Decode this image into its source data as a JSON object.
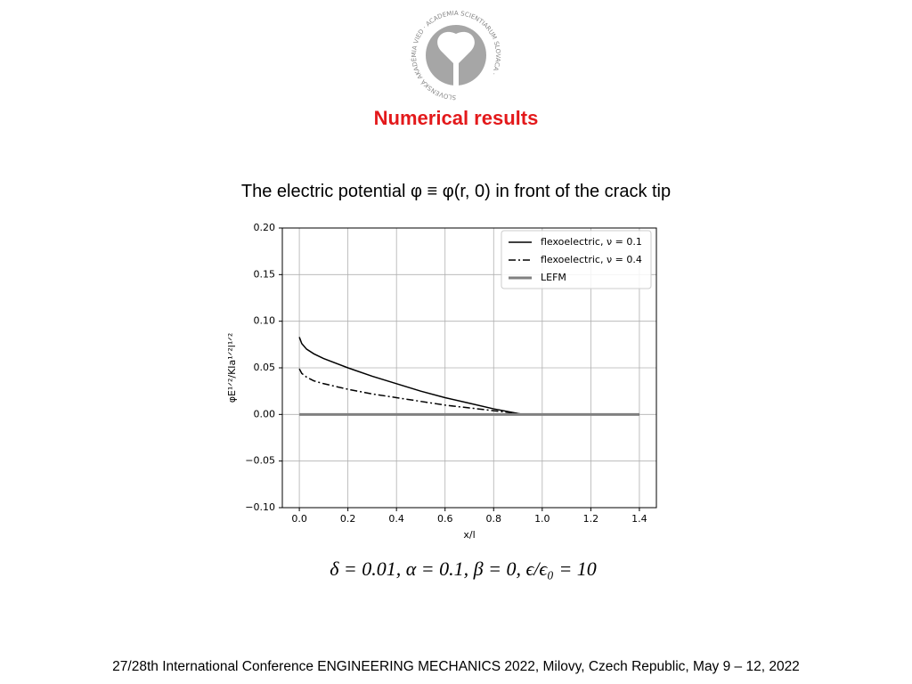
{
  "slide": {
    "logo_text": "SLOVENSKÁ AKADÉMIA VIED · ACADEMIA SCIENTIARUM SLOVACA ·",
    "title": "Numerical results",
    "subtitle": "The electric potential φ ≡ φ(r, 0) in front of the crack tip",
    "parameters": "δ = 0.01, α = 0.1, β = 0, ϵ/ϵ₀ = 10",
    "footer": "27/28th International Conference ENGINEERING MECHANICS 2022, Milovy, Czech Republic, May 9 – 12, 2022"
  },
  "chart_data": {
    "type": "line",
    "x_label": "x/l",
    "y_label": "φE¹ᐟ²/KIa¹ᐟ²l¹ᐟ²",
    "x": [
      0,
      0.01,
      0.03,
      0.06,
      0.1,
      0.2,
      0.3,
      0.4,
      0.5,
      0.6,
      0.7,
      0.8,
      0.9,
      0.92,
      1.0,
      1.2,
      1.4
    ],
    "series": [
      {
        "name": "flexoelectric, ν = 0.1",
        "color": "#000000",
        "linestyle": "solid",
        "values": [
          0.083,
          0.076,
          0.07,
          0.065,
          0.06,
          0.05,
          0.041,
          0.033,
          0.025,
          0.018,
          0.012,
          0.006,
          0.001,
          0,
          0,
          0,
          0
        ]
      },
      {
        "name": "flexoelectric, ν = 0.4",
        "color": "#000000",
        "linestyle": "dashdot",
        "values": [
          0.049,
          0.044,
          0.04,
          0.036,
          0.033,
          0.027,
          0.022,
          0.018,
          0.014,
          0.01,
          0.007,
          0.004,
          0.001,
          0,
          0,
          0,
          0
        ]
      },
      {
        "name": "LEFM",
        "color": "#808080",
        "linestyle": "thick",
        "values": [
          0,
          0,
          0,
          0,
          0,
          0,
          0,
          0,
          0,
          0,
          0,
          0,
          0,
          0,
          0,
          0,
          0
        ]
      }
    ],
    "xlim": [
      -0.07,
      1.47
    ],
    "ylim": [
      -0.1,
      0.2
    ],
    "xticks": [
      {
        "value": 0,
        "label": "0.0"
      },
      0.2,
      0.4,
      0.6,
      0.8,
      {
        "value": 1,
        "label": "1.0"
      },
      1.2,
      1.4
    ],
    "yticks": [
      {
        "value": -0.1,
        "label": "−0.10"
      },
      {
        "value": -0.05,
        "label": "−0.05"
      },
      {
        "value": 0,
        "label": "0.00"
      },
      {
        "value": 0.05,
        "label": "0.05"
      },
      {
        "value": 0.1,
        "label": "0.10"
      },
      {
        "value": 0.15,
        "label": "0.15"
      },
      {
        "value": 0.2,
        "label": "0.20"
      }
    ],
    "grid": true,
    "legend": "upper-right"
  }
}
